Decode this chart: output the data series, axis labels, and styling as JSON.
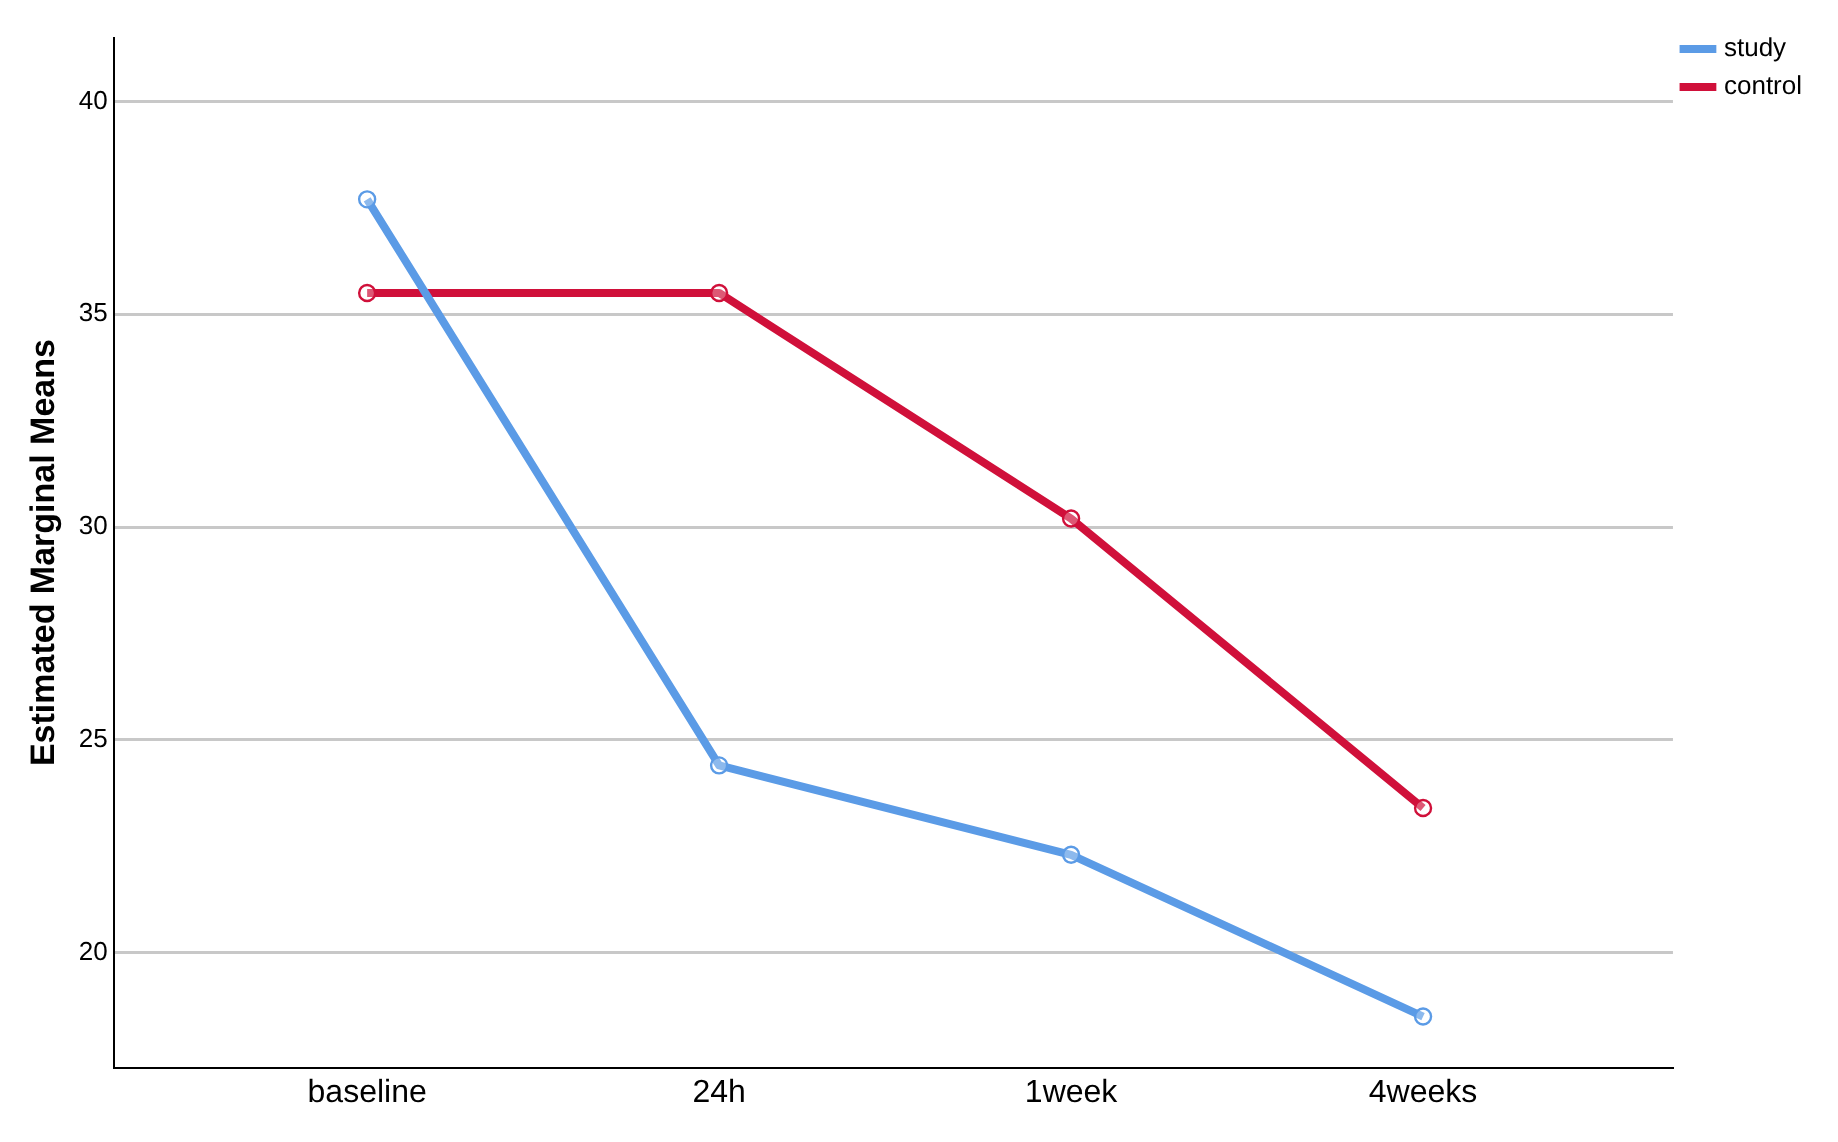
{
  "chart_data": {
    "type": "line",
    "ylabel": "Estimated Marginal Means",
    "categories": [
      "baseline",
      "24h",
      "1week",
      "4weeks"
    ],
    "series": [
      {
        "name": "study",
        "color": "#5b9be6",
        "values": [
          37.7,
          24.4,
          22.3,
          18.5
        ]
      },
      {
        "name": "control",
        "color": "#d0103a",
        "values": [
          35.5,
          35.5,
          30.2,
          23.4
        ]
      }
    ],
    "ylim": [
      17.3,
      41.5
    ],
    "yticks": [
      20,
      25,
      30,
      35,
      40
    ],
    "grid": "y",
    "legend": "top right",
    "marker": "circle",
    "line_style": "solid"
  }
}
